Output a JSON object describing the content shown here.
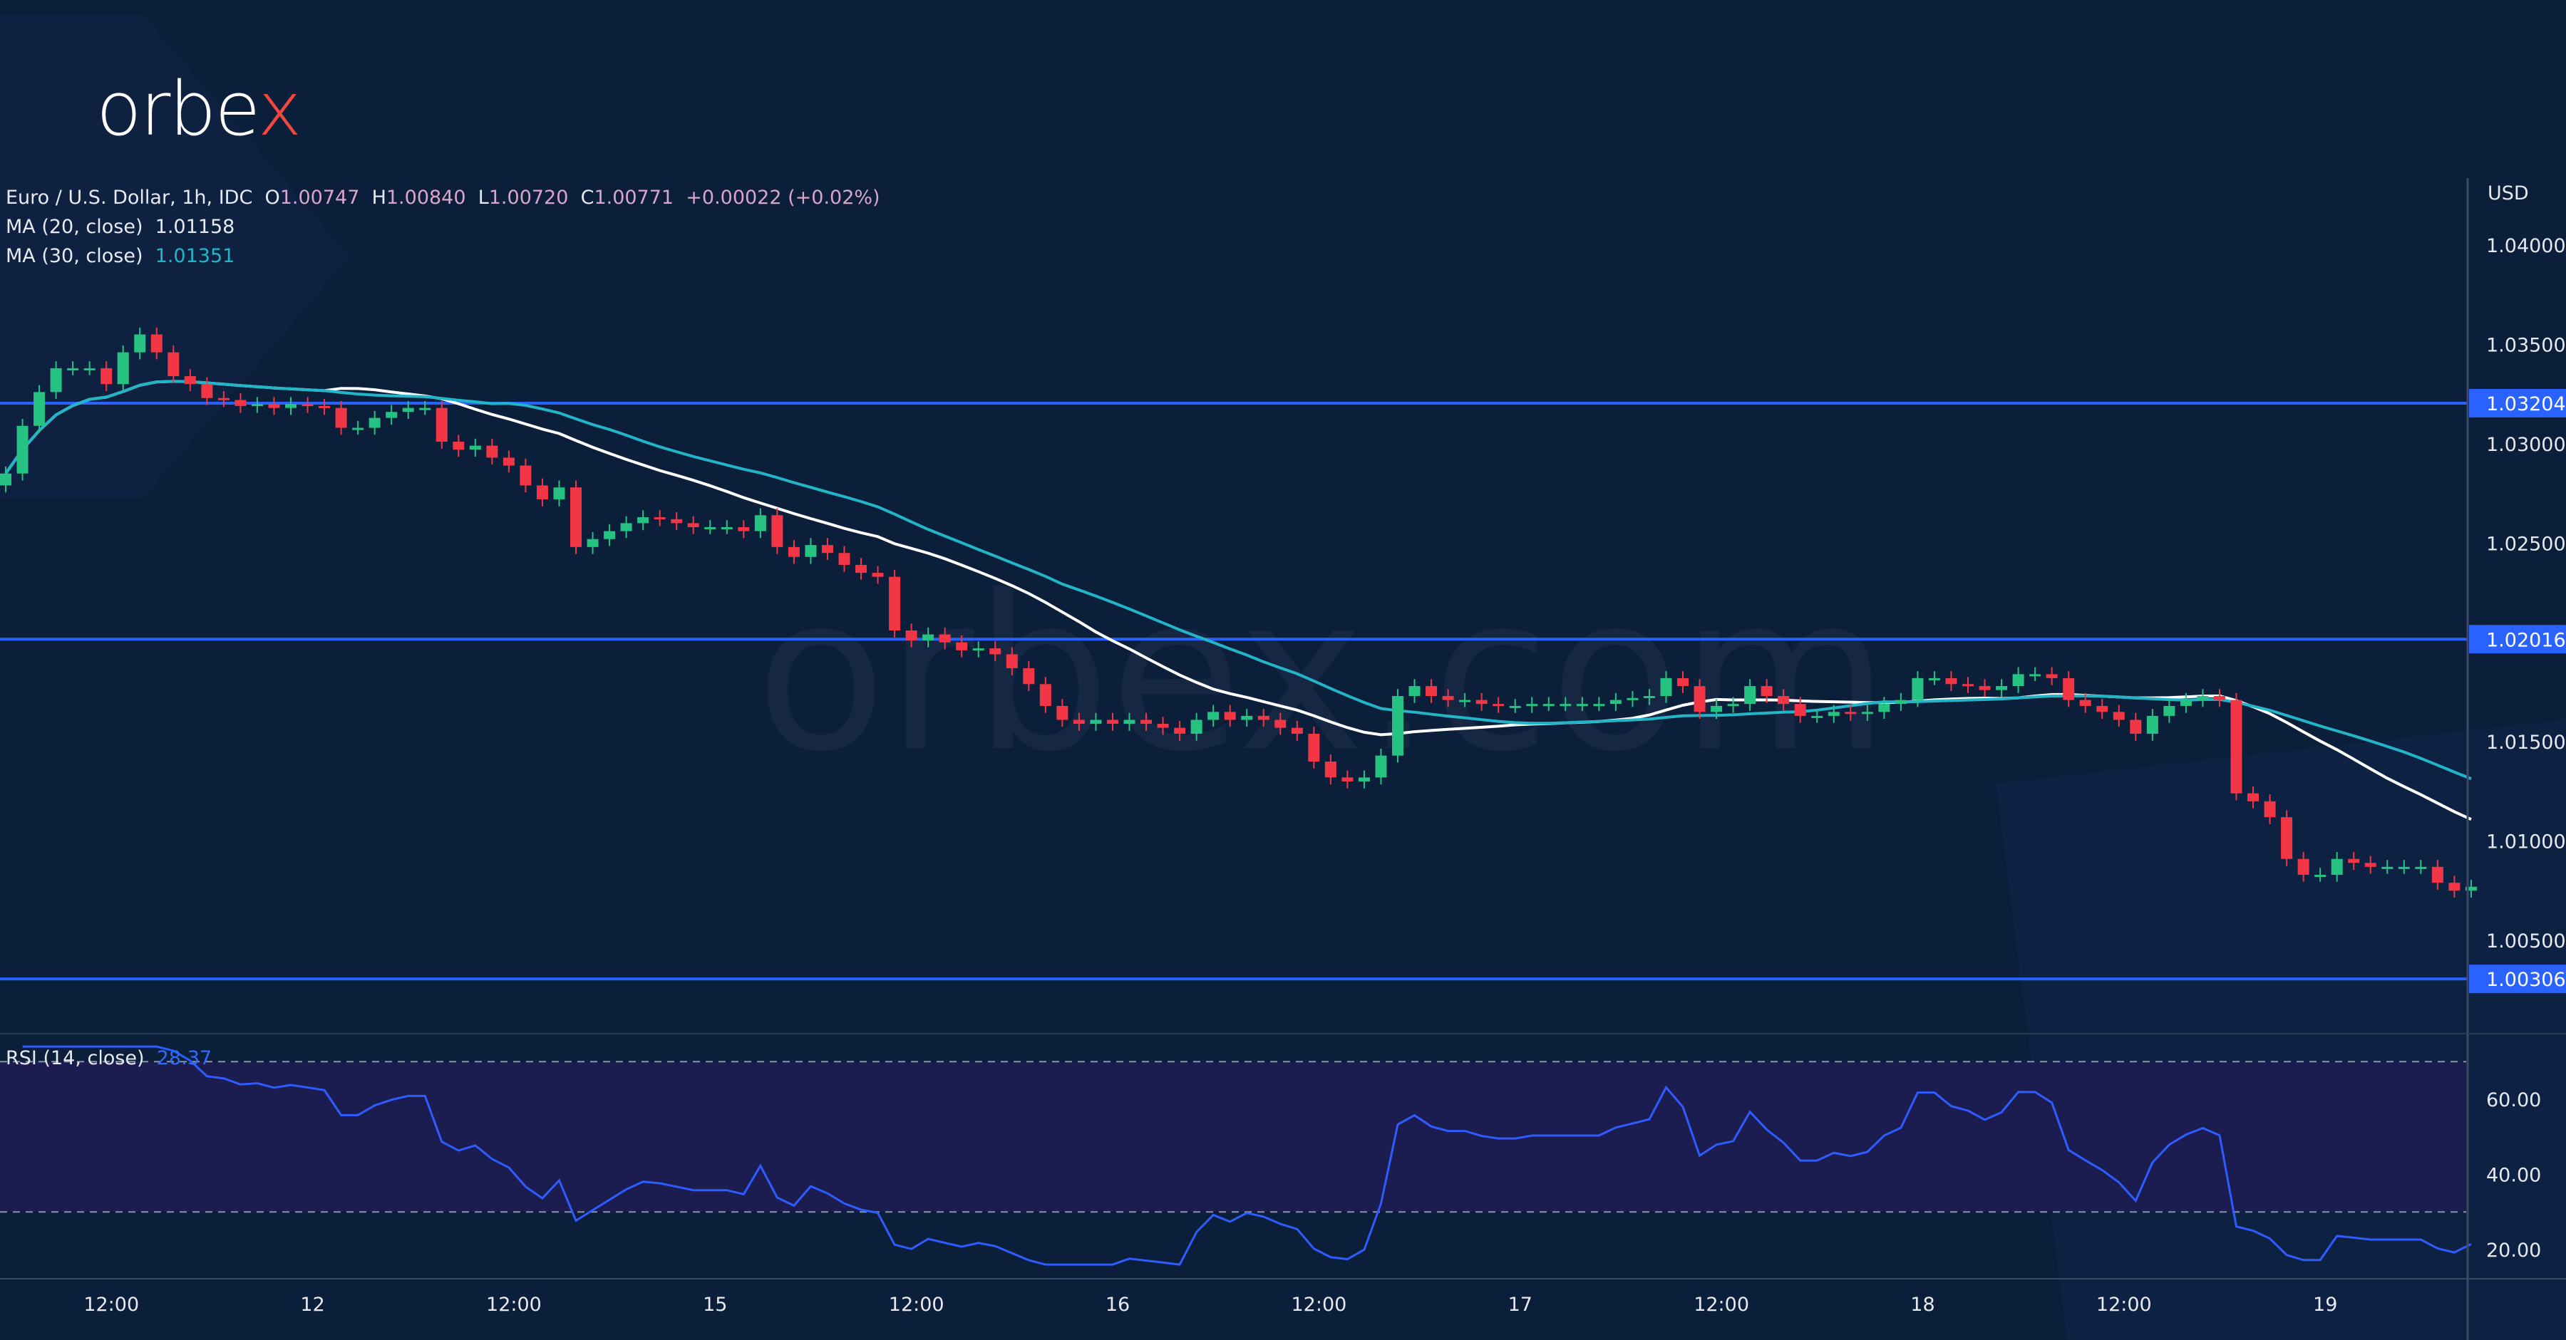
{
  "brand": {
    "logo_text": "orbex",
    "watermark": "orbex.com"
  },
  "legend": {
    "symbol": "Euro / U.S. Dollar, 1h, IDC",
    "o_label": "O",
    "o": "1.00747",
    "h_label": "H",
    "h": "1.00840",
    "l_label": "L",
    "l": "1.00720",
    "c_label": "C",
    "c": "1.00771",
    "change": "+0.00022 (+0.02%)",
    "ma20_label": "MA (20, close)",
    "ma20_value": "1.01158",
    "ma30_label": "MA (30, close)",
    "ma30_value": "1.01351",
    "rsi_label": "RSI (14, close)",
    "rsi_value": "28.37"
  },
  "colors": {
    "background": "#0b1e3a",
    "up": "#26c281",
    "down": "#f23645",
    "ma20": "#ffffff",
    "ma30": "#22b5c8",
    "level_line": "#2962ff",
    "rsi_line": "#2f5cff",
    "rsi_band": "#1b1d50"
  },
  "chart_data": {
    "type": "candlestick",
    "currency": "USD",
    "ylim": [
      1.0,
      1.042
    ],
    "y_ticks": [
      "1.04000",
      "1.03500",
      "1.03000",
      "1.02500",
      "1.01500",
      "1.01000",
      "1.00500"
    ],
    "levels": [
      "1.03204",
      "1.02016",
      "1.00306"
    ],
    "x_ticks": [
      "12:00",
      "12",
      "12:00",
      "15",
      "12:00",
      "16",
      "12:00",
      "17",
      "12:00",
      "18",
      "12:00",
      "19"
    ],
    "closes": [
      1.0285,
      1.0309,
      1.0326,
      1.0338,
      1.0338,
      1.0338,
      1.033,
      1.0346,
      1.0355,
      1.0346,
      1.0334,
      1.033,
      1.0323,
      1.0322,
      1.0319,
      1.032,
      1.0318,
      1.032,
      1.0319,
      1.0318,
      1.0308,
      1.0308,
      1.0313,
      1.0316,
      1.0318,
      1.0318,
      1.0301,
      1.0297,
      1.0299,
      1.0293,
      1.0289,
      1.0279,
      1.0272,
      1.0278,
      1.0248,
      1.0252,
      1.0256,
      1.026,
      1.0263,
      1.0262,
      1.026,
      1.0258,
      1.0258,
      1.0258,
      1.0256,
      1.0264,
      1.0248,
      1.0243,
      1.0249,
      1.0245,
      1.0239,
      1.0235,
      1.0233,
      1.0206,
      1.0201,
      1.0204,
      1.02,
      1.0196,
      1.0197,
      1.0194,
      1.0187,
      1.0179,
      1.0168,
      1.0161,
      1.0159,
      1.0161,
      1.0159,
      1.0161,
      1.0159,
      1.0157,
      1.0154,
      1.0161,
      1.0165,
      1.0161,
      1.0163,
      1.0161,
      1.0157,
      1.0154,
      1.014,
      1.0132,
      1.013,
      1.0132,
      1.0143,
      1.0173,
      1.0178,
      1.0173,
      1.0171,
      1.0171,
      1.0169,
      1.0168,
      1.0168,
      1.0169,
      1.0169,
      1.0169,
      1.0169,
      1.0169,
      1.0171,
      1.0172,
      1.0173,
      1.0182,
      1.0178,
      1.0165,
      1.0168,
      1.0169,
      1.0178,
      1.0173,
      1.0169,
      1.0163,
      1.0163,
      1.0165,
      1.0164,
      1.0165,
      1.0169,
      1.0171,
      1.0182,
      1.0182,
      1.0179,
      1.0178,
      1.0176,
      1.0178,
      1.0184,
      1.0184,
      1.0182,
      1.0171,
      1.0168,
      1.0165,
      1.0161,
      1.0154,
      1.0163,
      1.0168,
      1.0171,
      1.0173,
      1.0171,
      1.0124,
      1.012,
      1.0112,
      1.0091,
      1.0083,
      1.0083,
      1.0091,
      1.0089,
      1.0087,
      1.0087,
      1.0087,
      1.0087,
      1.0079,
      1.0075,
      1.0077
    ],
    "rsi": {
      "period": 14,
      "levels": [
        70,
        30
      ],
      "y_ticks": [
        "60.00",
        "40.00",
        "20.00"
      ],
      "ylim": [
        15,
        75
      ]
    },
    "ma_periods": [
      20,
      30
    ]
  }
}
